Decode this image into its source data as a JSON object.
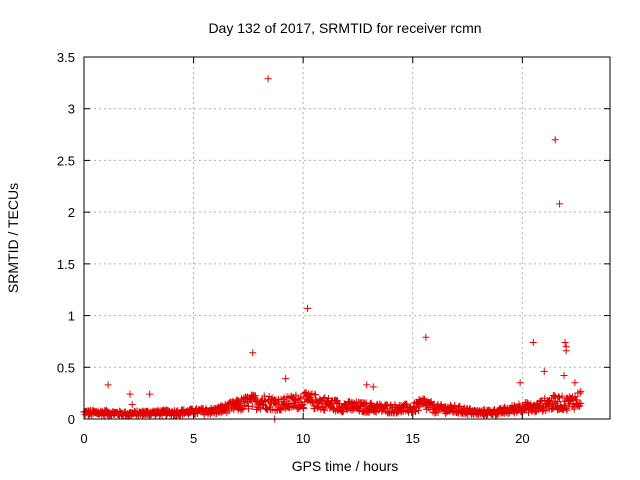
{
  "chart_data": {
    "type": "scatter",
    "title": "Day 132 of 2017, SRMTID for receiver rcmn",
    "xlabel": "GPS time / hours",
    "ylabel": "SRMTID / TECUs",
    "xlim": [
      0,
      24
    ],
    "ylim": [
      0,
      3.5
    ],
    "xticks": [
      0,
      5,
      10,
      15,
      20
    ],
    "xtick_labels": [
      "0",
      "5",
      "10",
      "15",
      "20"
    ],
    "yticks": [
      0,
      0.5,
      1,
      1.5,
      2,
      2.5,
      3,
      3.5
    ],
    "ytick_labels": [
      "0",
      "0.5",
      "1",
      "1.5",
      "2",
      "2.5",
      "3",
      "3.5"
    ],
    "grid": true,
    "marker": "+",
    "color": "#e00000",
    "baseline_profile": {
      "x": [
        0,
        1,
        2,
        3,
        4,
        5,
        6,
        7,
        7.5,
        8,
        8.5,
        9,
        9.5,
        10,
        10.5,
        11,
        11.5,
        12,
        13,
        14,
        15,
        15.5,
        16,
        17,
        18,
        19,
        19.5,
        20,
        20.5,
        21,
        21.5,
        22,
        22.5,
        22.7
      ],
      "y": [
        0.06,
        0.06,
        0.05,
        0.06,
        0.06,
        0.07,
        0.08,
        0.13,
        0.16,
        0.17,
        0.16,
        0.14,
        0.16,
        0.18,
        0.17,
        0.15,
        0.13,
        0.12,
        0.11,
        0.1,
        0.1,
        0.15,
        0.1,
        0.09,
        0.06,
        0.07,
        0.09,
        0.12,
        0.1,
        0.14,
        0.16,
        0.15,
        0.18,
        0.2
      ]
    },
    "outliers": {
      "x": [
        1.1,
        2.1,
        2.2,
        3.0,
        7.7,
        8.4,
        8.7,
        9.2,
        10.2,
        12.9,
        13.2,
        15.6,
        19.9,
        20.5,
        21.0,
        21.5,
        21.7,
        21.95,
        22.0,
        22.0,
        21.9,
        22.4
      ],
      "y": [
        0.33,
        0.24,
        0.14,
        0.24,
        0.64,
        3.29,
        0.0,
        0.39,
        1.07,
        0.33,
        0.31,
        0.79,
        0.35,
        0.74,
        0.46,
        2.7,
        2.08,
        0.74,
        0.7,
        0.66,
        0.42,
        0.35
      ]
    }
  }
}
